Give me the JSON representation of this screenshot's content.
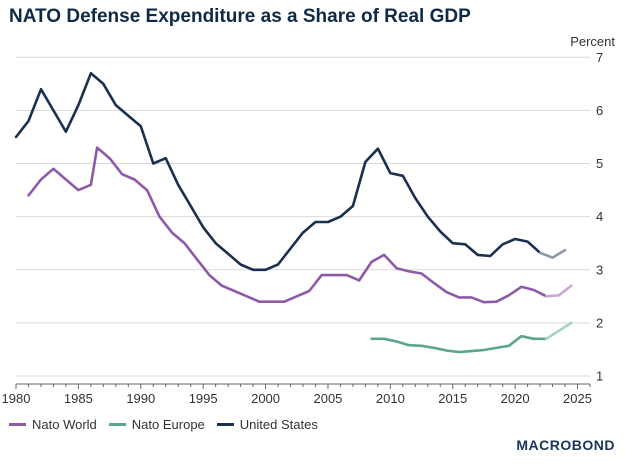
{
  "chart_data": {
    "type": "line",
    "title": "NATO Defense Expenditure as a Share of Real GDP",
    "unit_label": "Percent",
    "xlim": [
      1980,
      2026
    ],
    "ylim": [
      0.85,
      7.25
    ],
    "x_ticks": [
      1980,
      1985,
      1990,
      1995,
      2000,
      2005,
      2010,
      2015,
      2020,
      2025
    ],
    "y_ticks": [
      1,
      2,
      3,
      4,
      5,
      6,
      7
    ],
    "grid": "horizontal",
    "legend_position": "bottom-left",
    "series": [
      {
        "name": "Nato World",
        "color": "#8e5aa8",
        "projection_color": "#c9a9d6",
        "points": [
          [
            1981,
            4.4
          ],
          [
            1982,
            4.7
          ],
          [
            1983,
            4.9
          ],
          [
            1984,
            4.7
          ],
          [
            1985,
            4.5
          ],
          [
            1986,
            4.6
          ],
          [
            1986.5,
            5.3
          ],
          [
            1987.5,
            5.1
          ],
          [
            1988.5,
            4.8
          ],
          [
            1989.5,
            4.7
          ],
          [
            1990.5,
            4.5
          ],
          [
            1991.5,
            4.0
          ],
          [
            1992.5,
            3.7
          ],
          [
            1993.5,
            3.5
          ],
          [
            1994.5,
            3.2
          ],
          [
            1995.5,
            2.9
          ],
          [
            1996.5,
            2.7
          ],
          [
            1997.5,
            2.6
          ],
          [
            1998.5,
            2.5
          ],
          [
            1999.5,
            2.4
          ],
          [
            2000.5,
            2.4
          ],
          [
            2001.5,
            2.4
          ],
          [
            2002.5,
            2.5
          ],
          [
            2003.5,
            2.6
          ],
          [
            2004.5,
            2.9
          ],
          [
            2005.5,
            2.9
          ],
          [
            2006.5,
            2.9
          ],
          [
            2007.5,
            2.8
          ],
          [
            2008.5,
            3.15
          ],
          [
            2009.5,
            3.28
          ],
          [
            2010.5,
            3.03
          ],
          [
            2011.5,
            2.97
          ],
          [
            2012.5,
            2.93
          ],
          [
            2013.5,
            2.75
          ],
          [
            2014.5,
            2.58
          ],
          [
            2015.5,
            2.48
          ],
          [
            2016.5,
            2.48
          ],
          [
            2017.5,
            2.39
          ],
          [
            2018.5,
            2.4
          ],
          [
            2019.5,
            2.52
          ],
          [
            2020.5,
            2.68
          ],
          [
            2021.5,
            2.62
          ],
          [
            2022.5,
            2.5
          ]
        ],
        "projection": [
          [
            2022.5,
            2.5
          ],
          [
            2023.5,
            2.52
          ],
          [
            2024.5,
            2.7
          ]
        ]
      },
      {
        "name": "Nato Europe",
        "color": "#5aa58e",
        "projection_color": "#a9d4c4",
        "points": [
          [
            2008.5,
            1.7
          ],
          [
            2009.5,
            1.7
          ],
          [
            2010.5,
            1.65
          ],
          [
            2011.5,
            1.58
          ],
          [
            2012.5,
            1.57
          ],
          [
            2013.5,
            1.53
          ],
          [
            2014.5,
            1.48
          ],
          [
            2015.5,
            1.45
          ],
          [
            2016.5,
            1.47
          ],
          [
            2017.5,
            1.49
          ],
          [
            2018.5,
            1.53
          ],
          [
            2019.5,
            1.57
          ],
          [
            2020.5,
            1.75
          ],
          [
            2021.5,
            1.7
          ],
          [
            2022.5,
            1.7
          ]
        ],
        "projection": [
          [
            2022.5,
            1.7
          ],
          [
            2023.5,
            1.85
          ],
          [
            2024.5,
            2.0
          ]
        ]
      },
      {
        "name": "United States",
        "color": "#1b2f4f",
        "projection_color": "#8c97a8",
        "points": [
          [
            1980,
            5.5
          ],
          [
            1981,
            5.8
          ],
          [
            1982,
            6.4
          ],
          [
            1983,
            6.0
          ],
          [
            1984,
            5.6
          ],
          [
            1985,
            6.1
          ],
          [
            1986,
            6.7
          ],
          [
            1987,
            6.5
          ],
          [
            1988,
            6.1
          ],
          [
            1989,
            5.9
          ],
          [
            1990,
            5.7
          ],
          [
            1991,
            5.0
          ],
          [
            1992,
            5.1
          ],
          [
            1993,
            4.6
          ],
          [
            1994,
            4.2
          ],
          [
            1995,
            3.8
          ],
          [
            1996,
            3.5
          ],
          [
            1997,
            3.3
          ],
          [
            1998,
            3.1
          ],
          [
            1999,
            3.0
          ],
          [
            2000,
            3.0
          ],
          [
            2001,
            3.1
          ],
          [
            2002,
            3.4
          ],
          [
            2003,
            3.7
          ],
          [
            2004,
            3.9
          ],
          [
            2005,
            3.9
          ],
          [
            2006,
            4.0
          ],
          [
            2007,
            4.2
          ],
          [
            2008,
            5.03
          ],
          [
            2009,
            5.28
          ],
          [
            2010,
            4.82
          ],
          [
            2011,
            4.77
          ],
          [
            2012,
            4.35
          ],
          [
            2013,
            4.0
          ],
          [
            2014,
            3.72
          ],
          [
            2015,
            3.5
          ],
          [
            2016,
            3.48
          ],
          [
            2017,
            3.28
          ],
          [
            2018,
            3.26
          ],
          [
            2019,
            3.48
          ],
          [
            2020,
            3.58
          ],
          [
            2021,
            3.53
          ],
          [
            2022,
            3.32
          ]
        ],
        "projection": [
          [
            2022,
            3.32
          ],
          [
            2023,
            3.23
          ],
          [
            2024,
            3.37
          ]
        ]
      }
    ]
  },
  "branding": {
    "name": "MACROBOND"
  }
}
